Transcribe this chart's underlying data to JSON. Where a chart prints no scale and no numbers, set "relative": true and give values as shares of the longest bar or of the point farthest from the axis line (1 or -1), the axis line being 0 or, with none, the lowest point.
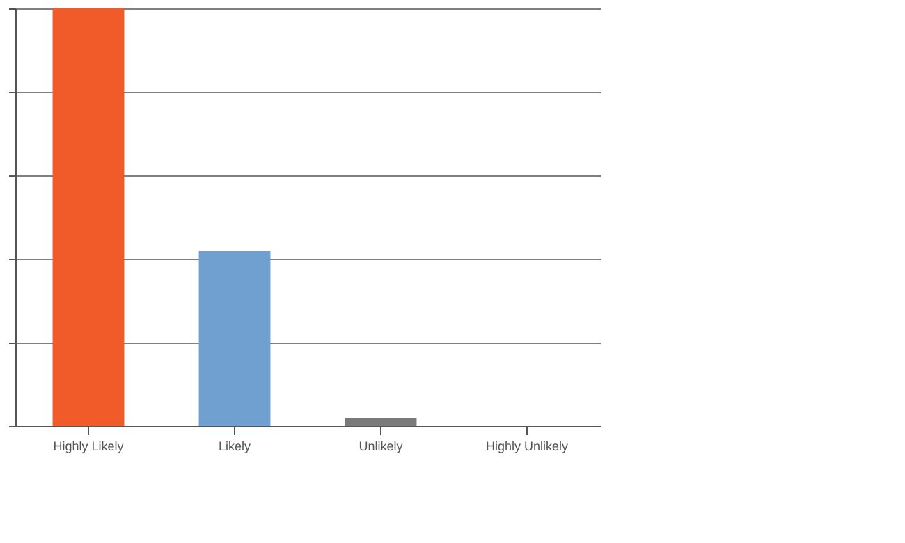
{
  "chart_data": {
    "type": "bar",
    "relative": true,
    "grid": "y",
    "categories": [
      "Highly Likely",
      "Likely",
      "Unlikely",
      "Highly Unlikely"
    ],
    "values": [
      1,
      0.42,
      0.02,
      0
    ],
    "colors": [
      "#f15a29",
      "#6fa0cf",
      "#7a7a7a",
      "#9a9a9a"
    ]
  }
}
